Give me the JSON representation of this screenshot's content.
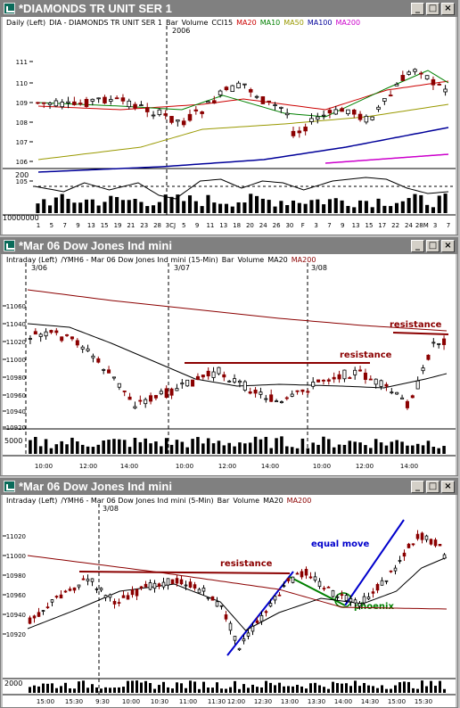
{
  "panels": [
    {
      "title": "*DIAMONDS TR UNIT SER 1",
      "header": [
        "Daily (Left)",
        "DIA - DIAMONDS TR UNIT SER 1",
        "Bar",
        "Volume",
        "CCI15"
      ],
      "header_ma": [
        {
          "label": "MA20",
          "color": "#cc0000"
        },
        {
          "label": "MA10",
          "color": "#008000"
        },
        {
          "label": "MA50",
          "color": "#999900"
        },
        {
          "label": "MA100",
          "color": "#000099"
        },
        {
          "label": "MA200",
          "color": "#cc00cc"
        }
      ],
      "date_label": "2006",
      "y_ticks": [
        "111",
        "110",
        "109",
        "108",
        "107",
        "106",
        "105"
      ],
      "cci_tick": "200",
      "volume_tick": "10000000",
      "x_ticks": [
        "1",
        "5",
        "7",
        "9",
        "13",
        "15",
        "19",
        "21",
        "23",
        "28",
        "3CJ",
        "5",
        "9",
        "11",
        "13",
        "18",
        "20",
        "24",
        "26",
        "30",
        "F",
        "3",
        "7",
        "9",
        "13",
        "15",
        "17",
        "22",
        "24",
        "28M",
        "3",
        "7"
      ]
    },
    {
      "title": "*Mar 06  Dow Jones Ind mini",
      "header": [
        "Intraday (Left)",
        "/YMH6 - Mar 06 Dow Jones Ind mini (15-Min)",
        "Bar",
        "Volume"
      ],
      "header_ma": [
        {
          "label": "MA20",
          "color": "#000000"
        },
        {
          "label": "MA200",
          "color": "#8b0000"
        }
      ],
      "date_labels": [
        "3/06",
        "3/07",
        "3/08"
      ],
      "y_ticks": [
        "11060",
        "11040",
        "11020",
        "11000",
        "10980",
        "10960",
        "10940",
        "10920"
      ],
      "volume_tick": "5000",
      "x_ticks": [
        "10:00",
        "12:00",
        "14:00",
        "10:00",
        "12:00",
        "14:00",
        "10:00",
        "12:00",
        "14:00"
      ],
      "annotations": [
        {
          "text": "resistance",
          "color": "#8b0000"
        },
        {
          "text": "resistance",
          "color": "#8b0000"
        }
      ]
    },
    {
      "title": "*Mar 06  Dow Jones Ind mini",
      "header": [
        "Intraday (Left)",
        "/YMH6 - Mar 06 Dow Jones Ind mini (5-Min)",
        "Bar",
        "Volume"
      ],
      "header_ma": [
        {
          "label": "MA20",
          "color": "#000000"
        },
        {
          "label": "MA200",
          "color": "#8b0000"
        }
      ],
      "date_label": "3/08",
      "y_ticks": [
        "11020",
        "11000",
        "10980",
        "10960",
        "10940",
        "10920"
      ],
      "volume_tick": "2000",
      "x_ticks": [
        "15:00",
        "15:30",
        "9:30",
        "10:00",
        "10:30",
        "11:00",
        "11:30",
        "12:00",
        "12:30",
        "13:00",
        "13:30",
        "14:00",
        "14:30",
        "15:00",
        "15:30"
      ],
      "annotations": [
        {
          "text": "resistance",
          "color": "#8b0000"
        },
        {
          "text": "equal move",
          "color": "#0000cc"
        },
        {
          "text": "phoenix",
          "color": "#008000"
        }
      ]
    }
  ],
  "buttons": {
    "minimize": "_",
    "maximize": "□",
    "close": "×"
  }
}
